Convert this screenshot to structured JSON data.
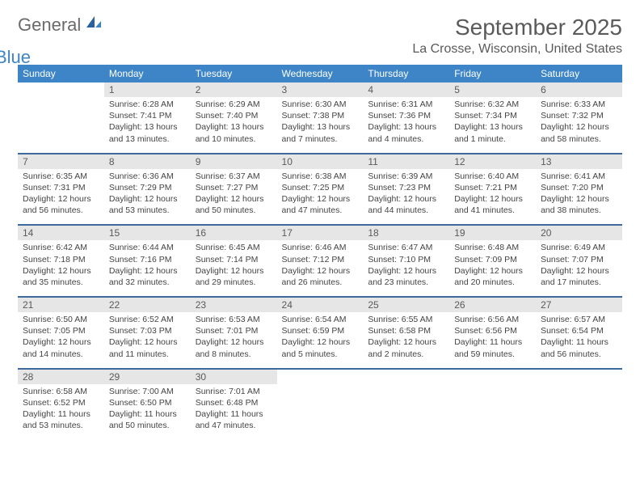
{
  "logo": {
    "text1": "General",
    "text2": "Blue"
  },
  "title": "September 2025",
  "location": "La Crosse, Wisconsin, United States",
  "colors": {
    "header_bg": "#3d85c6",
    "header_text": "#ffffff",
    "daynum_bg": "#e6e6e6",
    "border": "#3d6a9a",
    "text": "#5a5a5a"
  },
  "columns": [
    "Sunday",
    "Monday",
    "Tuesday",
    "Wednesday",
    "Thursday",
    "Friday",
    "Saturday"
  ],
  "weeks": [
    [
      {
        "n": "",
        "sr": "",
        "ss": "",
        "dl": ""
      },
      {
        "n": "1",
        "sr": "Sunrise: 6:28 AM",
        "ss": "Sunset: 7:41 PM",
        "dl": "Daylight: 13 hours and 13 minutes."
      },
      {
        "n": "2",
        "sr": "Sunrise: 6:29 AM",
        "ss": "Sunset: 7:40 PM",
        "dl": "Daylight: 13 hours and 10 minutes."
      },
      {
        "n": "3",
        "sr": "Sunrise: 6:30 AM",
        "ss": "Sunset: 7:38 PM",
        "dl": "Daylight: 13 hours and 7 minutes."
      },
      {
        "n": "4",
        "sr": "Sunrise: 6:31 AM",
        "ss": "Sunset: 7:36 PM",
        "dl": "Daylight: 13 hours and 4 minutes."
      },
      {
        "n": "5",
        "sr": "Sunrise: 6:32 AM",
        "ss": "Sunset: 7:34 PM",
        "dl": "Daylight: 13 hours and 1 minute."
      },
      {
        "n": "6",
        "sr": "Sunrise: 6:33 AM",
        "ss": "Sunset: 7:32 PM",
        "dl": "Daylight: 12 hours and 58 minutes."
      }
    ],
    [
      {
        "n": "7",
        "sr": "Sunrise: 6:35 AM",
        "ss": "Sunset: 7:31 PM",
        "dl": "Daylight: 12 hours and 56 minutes."
      },
      {
        "n": "8",
        "sr": "Sunrise: 6:36 AM",
        "ss": "Sunset: 7:29 PM",
        "dl": "Daylight: 12 hours and 53 minutes."
      },
      {
        "n": "9",
        "sr": "Sunrise: 6:37 AM",
        "ss": "Sunset: 7:27 PM",
        "dl": "Daylight: 12 hours and 50 minutes."
      },
      {
        "n": "10",
        "sr": "Sunrise: 6:38 AM",
        "ss": "Sunset: 7:25 PM",
        "dl": "Daylight: 12 hours and 47 minutes."
      },
      {
        "n": "11",
        "sr": "Sunrise: 6:39 AM",
        "ss": "Sunset: 7:23 PM",
        "dl": "Daylight: 12 hours and 44 minutes."
      },
      {
        "n": "12",
        "sr": "Sunrise: 6:40 AM",
        "ss": "Sunset: 7:21 PM",
        "dl": "Daylight: 12 hours and 41 minutes."
      },
      {
        "n": "13",
        "sr": "Sunrise: 6:41 AM",
        "ss": "Sunset: 7:20 PM",
        "dl": "Daylight: 12 hours and 38 minutes."
      }
    ],
    [
      {
        "n": "14",
        "sr": "Sunrise: 6:42 AM",
        "ss": "Sunset: 7:18 PM",
        "dl": "Daylight: 12 hours and 35 minutes."
      },
      {
        "n": "15",
        "sr": "Sunrise: 6:44 AM",
        "ss": "Sunset: 7:16 PM",
        "dl": "Daylight: 12 hours and 32 minutes."
      },
      {
        "n": "16",
        "sr": "Sunrise: 6:45 AM",
        "ss": "Sunset: 7:14 PM",
        "dl": "Daylight: 12 hours and 29 minutes."
      },
      {
        "n": "17",
        "sr": "Sunrise: 6:46 AM",
        "ss": "Sunset: 7:12 PM",
        "dl": "Daylight: 12 hours and 26 minutes."
      },
      {
        "n": "18",
        "sr": "Sunrise: 6:47 AM",
        "ss": "Sunset: 7:10 PM",
        "dl": "Daylight: 12 hours and 23 minutes."
      },
      {
        "n": "19",
        "sr": "Sunrise: 6:48 AM",
        "ss": "Sunset: 7:09 PM",
        "dl": "Daylight: 12 hours and 20 minutes."
      },
      {
        "n": "20",
        "sr": "Sunrise: 6:49 AM",
        "ss": "Sunset: 7:07 PM",
        "dl": "Daylight: 12 hours and 17 minutes."
      }
    ],
    [
      {
        "n": "21",
        "sr": "Sunrise: 6:50 AM",
        "ss": "Sunset: 7:05 PM",
        "dl": "Daylight: 12 hours and 14 minutes."
      },
      {
        "n": "22",
        "sr": "Sunrise: 6:52 AM",
        "ss": "Sunset: 7:03 PM",
        "dl": "Daylight: 12 hours and 11 minutes."
      },
      {
        "n": "23",
        "sr": "Sunrise: 6:53 AM",
        "ss": "Sunset: 7:01 PM",
        "dl": "Daylight: 12 hours and 8 minutes."
      },
      {
        "n": "24",
        "sr": "Sunrise: 6:54 AM",
        "ss": "Sunset: 6:59 PM",
        "dl": "Daylight: 12 hours and 5 minutes."
      },
      {
        "n": "25",
        "sr": "Sunrise: 6:55 AM",
        "ss": "Sunset: 6:58 PM",
        "dl": "Daylight: 12 hours and 2 minutes."
      },
      {
        "n": "26",
        "sr": "Sunrise: 6:56 AM",
        "ss": "Sunset: 6:56 PM",
        "dl": "Daylight: 11 hours and 59 minutes."
      },
      {
        "n": "27",
        "sr": "Sunrise: 6:57 AM",
        "ss": "Sunset: 6:54 PM",
        "dl": "Daylight: 11 hours and 56 minutes."
      }
    ],
    [
      {
        "n": "28",
        "sr": "Sunrise: 6:58 AM",
        "ss": "Sunset: 6:52 PM",
        "dl": "Daylight: 11 hours and 53 minutes."
      },
      {
        "n": "29",
        "sr": "Sunrise: 7:00 AM",
        "ss": "Sunset: 6:50 PM",
        "dl": "Daylight: 11 hours and 50 minutes."
      },
      {
        "n": "30",
        "sr": "Sunrise: 7:01 AM",
        "ss": "Sunset: 6:48 PM",
        "dl": "Daylight: 11 hours and 47 minutes."
      },
      {
        "n": "",
        "sr": "",
        "ss": "",
        "dl": ""
      },
      {
        "n": "",
        "sr": "",
        "ss": "",
        "dl": ""
      },
      {
        "n": "",
        "sr": "",
        "ss": "",
        "dl": ""
      },
      {
        "n": "",
        "sr": "",
        "ss": "",
        "dl": ""
      }
    ]
  ]
}
